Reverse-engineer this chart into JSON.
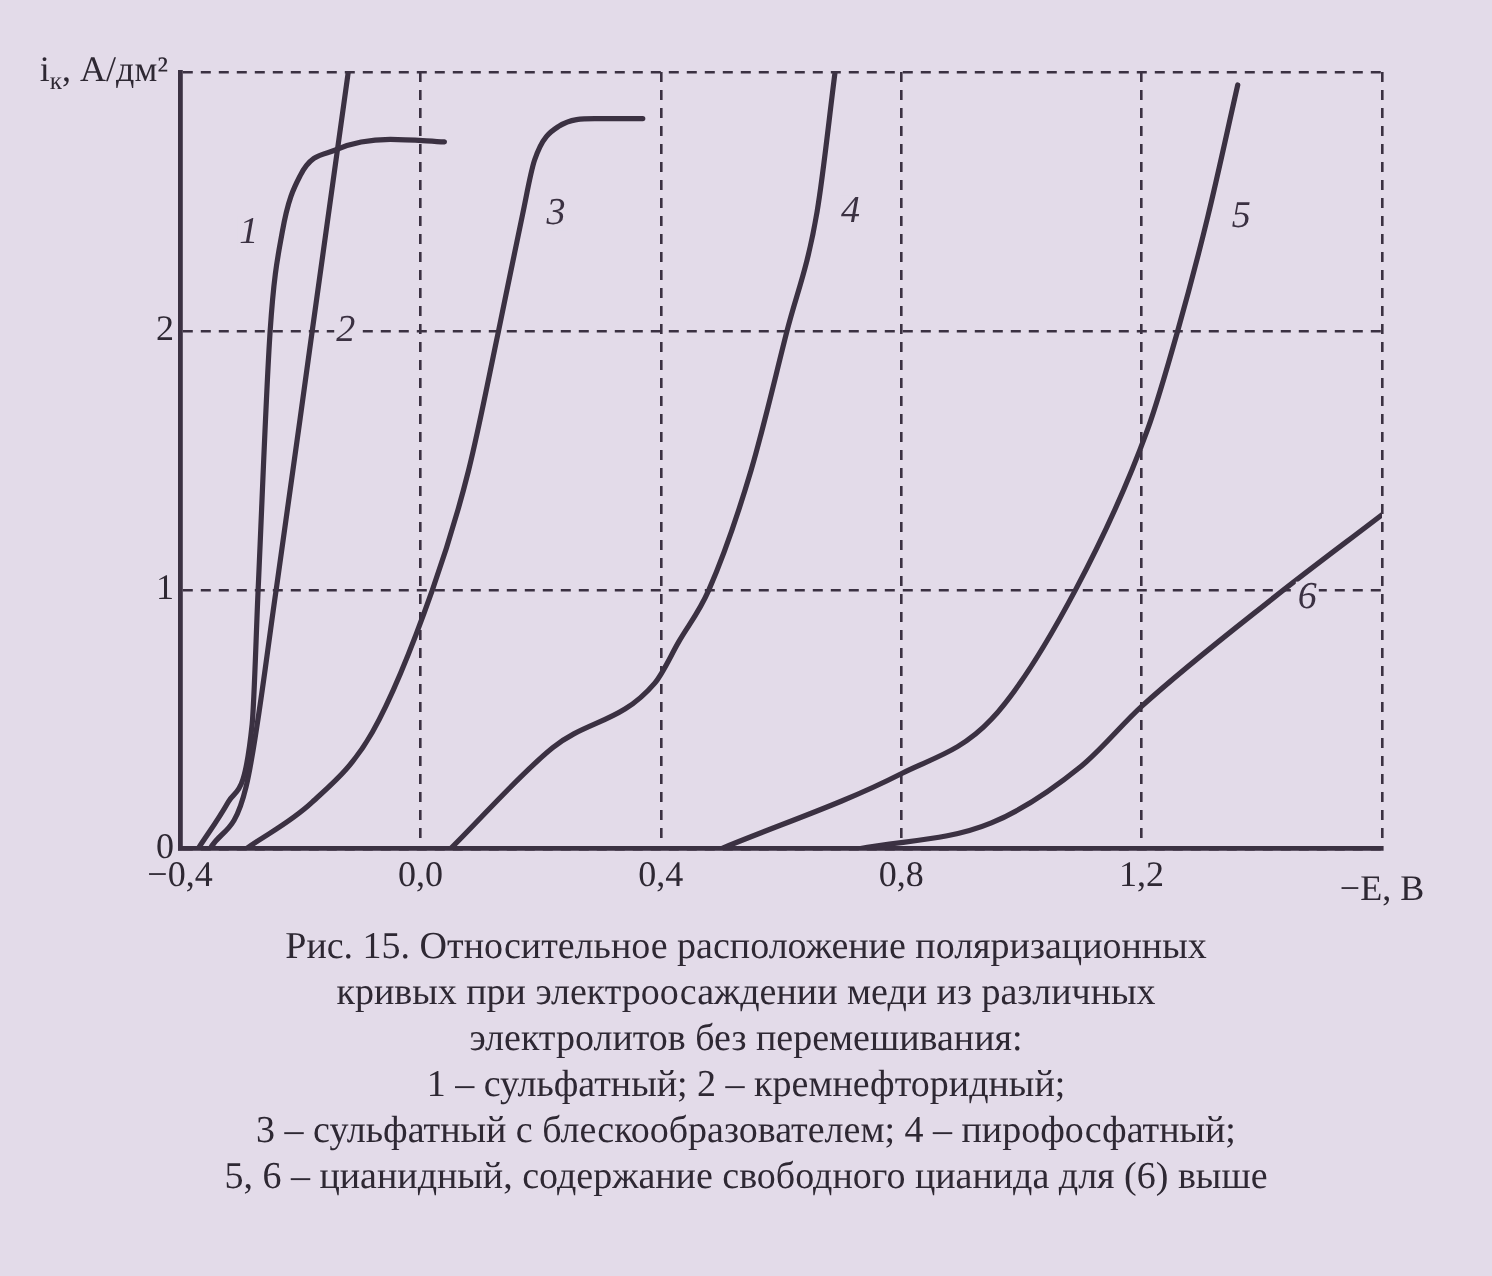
{
  "chart_data": {
    "type": "line",
    "ylabel": "i$_{к}$, А/дм²",
    "xlabel": "−E, В",
    "xlim": [
      -0.4,
      1.6
    ],
    "xticks": [
      {
        "value": -0.4,
        "label": "−0,4"
      },
      {
        "value": 0,
        "label": "0,0"
      },
      {
        "value": 0.4,
        "label": "0,4"
      },
      {
        "value": 0.8,
        "label": "0,8"
      },
      {
        "value": 1.2,
        "label": "1,2"
      },
      {
        "value": 1.6,
        "label": null
      }
    ],
    "ylim": [
      0,
      3
    ],
    "yticks": [
      0,
      1,
      2,
      {
        "value": 3,
        "label": null
      }
    ],
    "grid": true,
    "marker": "none",
    "line_style": "solid",
    "series": [
      {
        "name": "1",
        "color": "#3b3142",
        "x": [
          -0.37,
          -0.32,
          -0.28,
          -0.27,
          -0.25,
          -0.23,
          -0.2,
          -0.14,
          -0.05,
          0.04
        ],
        "values": [
          0,
          0.18,
          0.48,
          1.0,
          2.0,
          2.38,
          2.6,
          2.7,
          2.74,
          2.73
        ]
      },
      {
        "name": "2",
        "color": "#3b3142",
        "x": [
          -0.35,
          -0.29,
          -0.24,
          -0.18,
          -0.12
        ],
        "values": [
          0,
          0.24,
          1.0,
          2.0,
          3.0
        ]
      },
      {
        "name": "3",
        "color": "#3b3142",
        "x": [
          -0.29,
          -0.18,
          -0.08,
          0.02,
          0.08,
          0.13,
          0.17,
          0.19,
          0.23,
          0.29,
          0.37
        ],
        "values": [
          0,
          0.18,
          0.45,
          1.0,
          1.46,
          2.0,
          2.45,
          2.66,
          2.79,
          2.82,
          2.82
        ]
      },
      {
        "name": "4",
        "color": "#3b3142",
        "x": [
          0.05,
          0.22,
          0.39,
          0.43,
          0.48,
          0.55,
          0.61,
          0.66,
          0.69
        ],
        "values": [
          0,
          0.39,
          0.64,
          0.8,
          1.0,
          1.46,
          2.0,
          2.46,
          3.0
        ]
      },
      {
        "name": "5",
        "color": "#3b3142",
        "x": [
          0.5,
          0.8,
          0.95,
          1.09,
          1.21,
          1.26,
          1.31,
          1.36
        ],
        "values": [
          0,
          0.29,
          0.5,
          1.0,
          1.62,
          2.0,
          2.44,
          2.95
        ]
      },
      {
        "name": "6",
        "color": "#3b3142",
        "x": [
          0.73,
          0.95,
          1.1,
          1.2,
          1.42,
          1.6
        ],
        "values": [
          0,
          0.1,
          0.32,
          0.55,
          0.97,
          1.29
        ]
      }
    ],
    "annotations": [
      "Рис. 15. Относительное расположение поляризационных",
      "кривых при электроосаждении меди из различных",
      "электролитов без перемешивания:",
      "1 – сульфатный; 2 – кремнефторидный;",
      "3 – сульфатный с блескообразователем; 4 – пирофосфатный;",
      "5, 6 – цианидный, содержание свободного цианида для (6) выше"
    ]
  }
}
